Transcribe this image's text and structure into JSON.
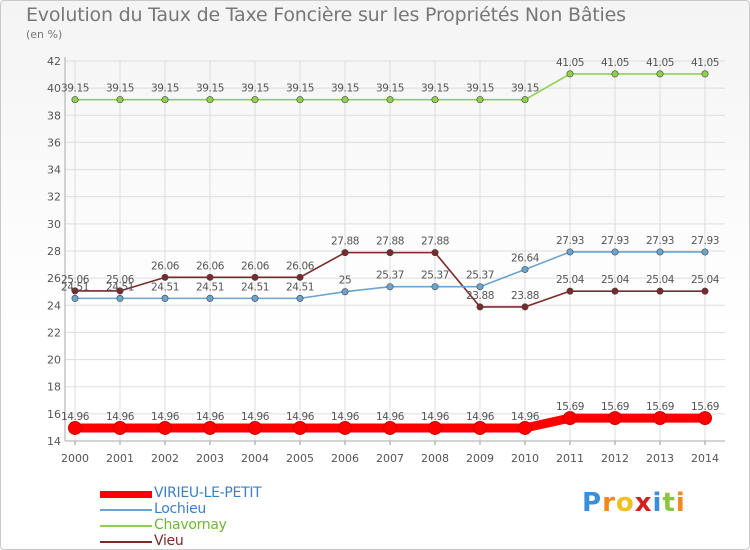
{
  "chart_data": {
    "type": "line",
    "title": "Evolution du Taux de Taxe Foncière sur les Propriétés Non Bâties",
    "subtitle": "(en %)",
    "xlabel": "",
    "ylabel": "",
    "x": [
      "2000",
      "2001",
      "2002",
      "2003",
      "2004",
      "2005",
      "2006",
      "2007",
      "2008",
      "2009",
      "2010",
      "2011",
      "2012",
      "2013",
      "2014"
    ],
    "ylim": [
      14,
      42
    ],
    "yticks": [
      "14",
      "16",
      "18",
      "20",
      "22",
      "24",
      "26",
      "28",
      "30",
      "32",
      "34",
      "36",
      "38",
      "40",
      "42"
    ],
    "grid": true,
    "legend_position": "bottom-left",
    "series": [
      {
        "name": "VIRIEU-LE-PETIT",
        "color": "#ff0000",
        "values": [
          14.96,
          14.96,
          14.96,
          14.96,
          14.96,
          14.96,
          14.96,
          14.96,
          14.96,
          14.96,
          14.96,
          15.69,
          15.69,
          15.69,
          15.69
        ],
        "labels": [
          "14.96",
          "14.96",
          "14.96",
          "14.96",
          "14.96",
          "14.96",
          "14.96",
          "14.96",
          "14.96",
          "14.96",
          "14.96",
          "15.69",
          "15.69",
          "15.69",
          "15.69"
        ]
      },
      {
        "name": "Lochieu",
        "color": "#6aa4cf",
        "values": [
          24.51,
          24.51,
          24.51,
          24.51,
          24.51,
          24.51,
          25,
          25.37,
          25.37,
          25.37,
          26.64,
          27.93,
          27.93,
          27.93,
          27.93
        ],
        "labels": [
          "24.51",
          "24.51",
          "24.51",
          "24.51",
          "24.51",
          "24.51",
          "25",
          "25.37",
          "25.37",
          "25.37",
          "26.64",
          "27.93",
          "27.93",
          "27.93",
          "27.93"
        ]
      },
      {
        "name": "Chavornay",
        "color": "#8fd14f",
        "values": [
          39.15,
          39.15,
          39.15,
          39.15,
          39.15,
          39.15,
          39.15,
          39.15,
          39.15,
          39.15,
          39.15,
          41.05,
          41.05,
          41.05,
          41.05
        ],
        "labels": [
          "39.15",
          "39.15",
          "39.15",
          "39.15",
          "39.15",
          "39.15",
          "39.15",
          "39.15",
          "39.15",
          "39.15",
          "39.15",
          "41.05",
          "41.05",
          "41.05",
          "41.05"
        ]
      },
      {
        "name": "Vieu",
        "color": "#7a2a2a",
        "values": [
          25.06,
          25.06,
          26.06,
          26.06,
          26.06,
          26.06,
          27.88,
          27.88,
          27.88,
          23.88,
          23.88,
          25.04,
          25.04,
          25.04,
          25.04
        ],
        "labels": [
          "25.06",
          "25.06",
          "26.06",
          "26.06",
          "26.06",
          "26.06",
          "27.88",
          "27.88",
          "27.88",
          "23.88",
          "23.88",
          "25.04",
          "25.04",
          "25.04",
          "25.04"
        ]
      }
    ]
  },
  "logo": {
    "letters": [
      "P",
      "r",
      "o",
      "x",
      "i",
      "t",
      "i"
    ],
    "colors": [
      "#3b8fd8",
      "#f08a1c",
      "#f0c020",
      "#d4201c",
      "#3b8fd8",
      "#8cc63f",
      "#f08a1c"
    ]
  }
}
